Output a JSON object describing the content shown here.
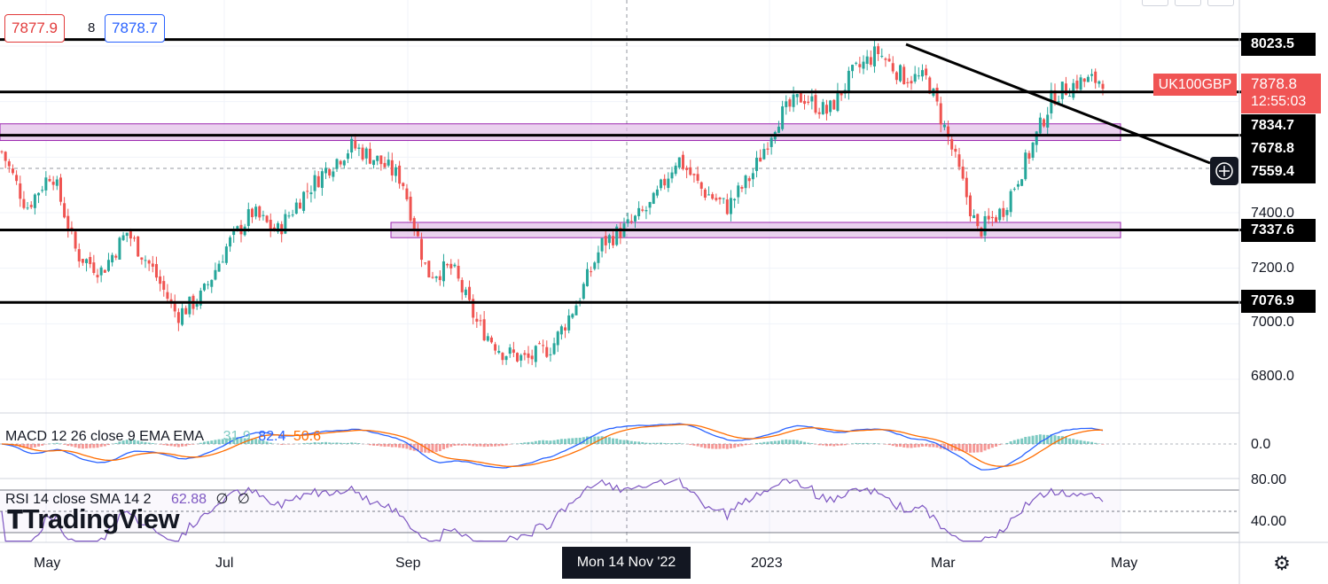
{
  "toolbar": {
    "bid": "7877.9",
    "spread": "8",
    "ask": "7878.7"
  },
  "symbol": {
    "name": "UK100GBP",
    "last_price": "7878.8",
    "countdown": "12:55:03"
  },
  "price_axis": {
    "ticks": [
      "7400.0",
      "7200.0",
      "7000.0",
      "6800.0"
    ],
    "tick_values": [
      7400,
      7200,
      7000,
      6800
    ],
    "levels": [
      "8023.5",
      "7834.7",
      "7678.8",
      "7559.4",
      "7337.6",
      "7076.9"
    ],
    "level_values": [
      8023.5,
      7834.7,
      7678.8,
      7559.4,
      7337.6,
      7076.9
    ]
  },
  "time_axis": {
    "labels": [
      "May",
      "Jul",
      "Sep",
      "2023",
      "Mar",
      "May"
    ],
    "crosshair_label": "Mon 14 Nov '22"
  },
  "macd": {
    "label": "MACD 12 26 close 9 EMA EMA",
    "hist": "31.9",
    "macd": "82.4",
    "signal": "50.6",
    "axis_tick": "0.0",
    "colors": {
      "macd": "#2962ff",
      "signal": "#ff6d00",
      "hist_up": "#26a69a",
      "hist_down": "#ef5350"
    }
  },
  "rsi": {
    "label": "RSI 14 close SMA 14 2",
    "value": "62.88",
    "sma": "∅",
    "extra": "∅",
    "axis_ticks": [
      "80.00",
      "40.00"
    ],
    "color": "#7e57c2"
  },
  "brand": {
    "logo_text": "TradingView",
    "logo_icon": "tradingview-icon"
  },
  "icons": {
    "settings": "gear-icon",
    "crosshair": "crosshair-plus-icon"
  },
  "colors": {
    "up": "#26a69a",
    "down": "#ef5350",
    "zone": "#e1bee7",
    "zone_border": "#9c27b0",
    "levels": "#000000",
    "last_price": "#f05454"
  },
  "chart_data": {
    "type": "candlestick",
    "symbol": "UK100GBP",
    "ylim": [
      6700,
      8110
    ],
    "x": [
      "2022-04",
      "2022-05",
      "2022-06",
      "2022-07",
      "2022-08",
      "2022-09",
      "2022-10",
      "2022-11",
      "2022-12",
      "2023-01",
      "2023-02",
      "2023-03",
      "2023-04"
    ],
    "close_path": [
      7620,
      7420,
      7550,
      7250,
      7190,
      7330,
      7200,
      7030,
      7100,
      7280,
      7400,
      7330,
      7460,
      7560,
      7640,
      7590,
      7520,
      7180,
      7200,
      7000,
      6900,
      6870,
      6920,
      7080,
      7290,
      7350,
      7430,
      7600,
      7480,
      7420,
      7540,
      7740,
      7820,
      7760,
      7900,
      7980,
      7890,
      7880,
      7620,
      7330,
      7410,
      7600,
      7820,
      7870,
      7880
    ],
    "resistance_levels": [
      8023.5,
      7834.7,
      7678.8,
      7337.6,
      7076.9
    ],
    "zones": [
      [
        7660,
        7720
      ],
      [
        7310,
        7365
      ]
    ],
    "trendline": {
      "from": [
        "2023-02",
        8030
      ],
      "to": [
        "2023-05",
        7560
      ]
    }
  }
}
